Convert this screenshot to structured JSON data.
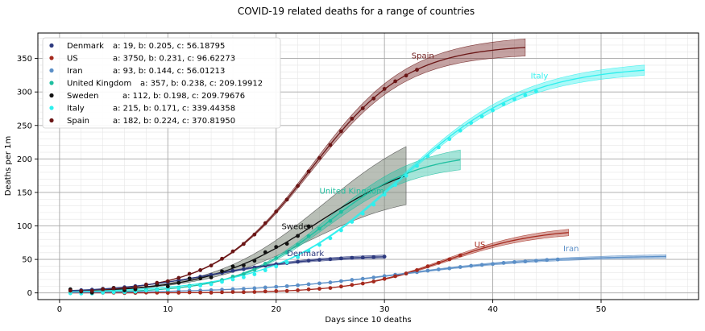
{
  "chart_data": {
    "type": "scatter",
    "title": "COVID-19 related deaths for a range of countries",
    "xlabel": "Days since 10 deaths",
    "ylabel": "Deaths per 1m",
    "xlim": [
      -2,
      59
    ],
    "ylim": [
      -10,
      388
    ],
    "xticks": [
      0,
      10,
      20,
      30,
      40,
      50
    ],
    "yticks": [
      0,
      50,
      100,
      150,
      200,
      250,
      300,
      350
    ],
    "grid": true,
    "minor_grid": true,
    "legend_position": "top-left",
    "series": [
      {
        "name": "Denmark",
        "legend_params": "a: 19, b: 0.205, c: 56.18795",
        "a": 19,
        "b": 0.205,
        "c": 56.18795,
        "color": "#2e3a7f",
        "n_points": 30,
        "fit_end": 30,
        "band": 2,
        "label_x": 21,
        "label_y": 55
      },
      {
        "name": "US",
        "legend_params": "a: 3750, b: 0.231, c: 96.62273",
        "a": 3750,
        "b": 0.231,
        "c": 96.62273,
        "color": "#a52a1e",
        "n_points": 37,
        "fit_end": 47,
        "band": 4,
        "label_x": 38.3,
        "label_y": 68
      },
      {
        "name": "Iran",
        "legend_params": "a: 93, b: 0.144, c: 56.01213",
        "a": 93,
        "b": 0.144,
        "c": 56.01213,
        "color": "#5b8fc7",
        "n_points": 46,
        "fit_end": 56,
        "band": 2,
        "label_x": 46.5,
        "label_y": 62
      },
      {
        "name": "United Kingdom",
        "legend_params": "a: 357, b: 0.238, c: 209.19912",
        "a": 357,
        "b": 0.238,
        "c": 209.19912,
        "color": "#1ebfa0",
        "n_points": 26,
        "fit_end": 37,
        "band": 12,
        "label_x": 24,
        "label_y": 148
      },
      {
        "name": "Sweden",
        "legend_params": "a: 112, b: 0.198, c: 209.79676",
        "a": 112,
        "b": 0.198,
        "c": 209.79676,
        "color": "#111111",
        "n_points": 23,
        "fit_end": 32,
        "band": 40,
        "label_x": 20.5,
        "label_y": 95
      },
      {
        "name": "Italy",
        "legend_params": "a: 215, b: 0.171, c: 339.44358",
        "a": 215,
        "b": 0.171,
        "c": 339.44358,
        "color": "#2ef0ee",
        "n_points": 44,
        "fit_end": 54,
        "band": 6,
        "label_x": 43.5,
        "label_y": 320
      },
      {
        "name": "Spain",
        "legend_params": "a: 182, b: 0.224, c: 370.81950",
        "a": 182,
        "b": 0.224,
        "c": 370.8195,
        "color": "#6b1616",
        "n_points": 33,
        "fit_end": 43,
        "band": 10,
        "label_x": 32.5,
        "label_y": 350
      }
    ]
  }
}
